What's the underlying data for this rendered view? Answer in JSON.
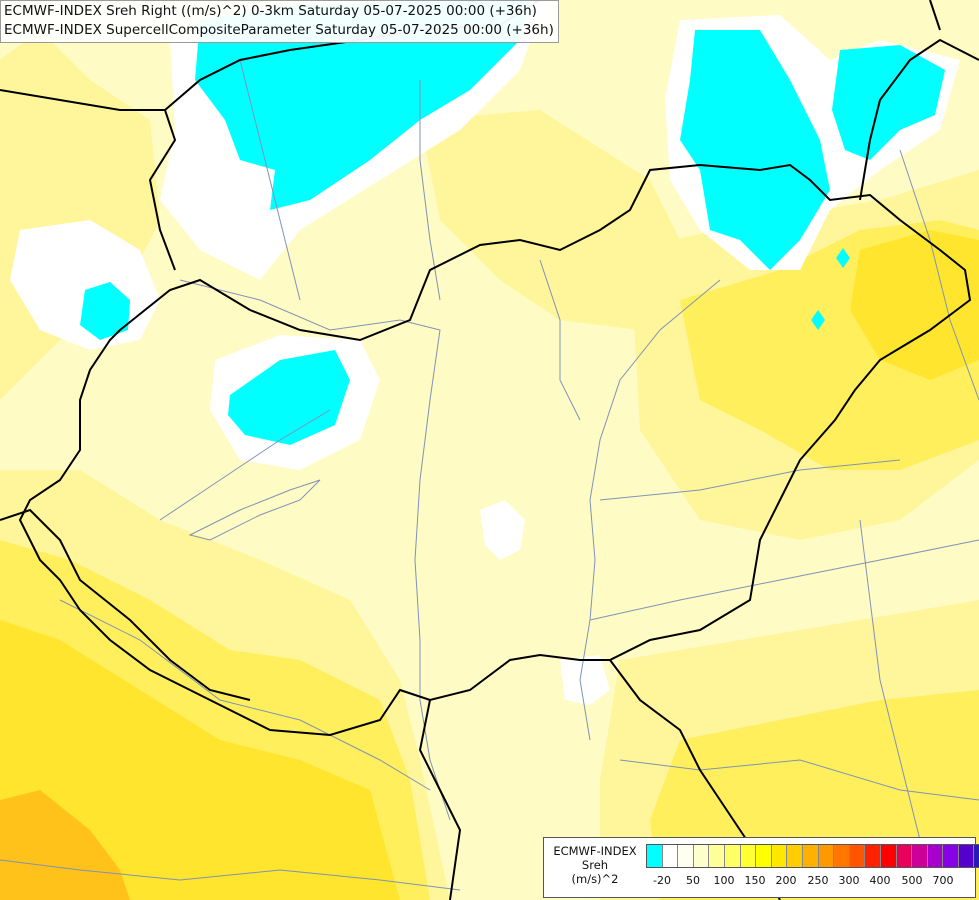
{
  "header": {
    "line1": "ECMWF-INDEX Sreh Right ((m/s)^2) 0-3km Saturday 05-07-2025 00:00 (+36h)",
    "line2": "ECMWF-INDEX SupercellCompositeParameter Saturday 05-07-2025 00:00 (+36h)"
  },
  "legend": {
    "title1": "ECMWF-INDEX",
    "title2": "Sreh",
    "unit": "(m/s)^2",
    "colors": [
      "#00ffff",
      "#ffffff",
      "#fffff0",
      "#ffffcc",
      "#ffff99",
      "#ffff66",
      "#ffff33",
      "#ffff00",
      "#ffe800",
      "#ffcc00",
      "#ffb000",
      "#ff9900",
      "#ff7700",
      "#ff5500",
      "#ff2200",
      "#ff0000",
      "#e8005a",
      "#cc0099",
      "#a800cc",
      "#8800e6",
      "#5500cc",
      "#2a1bb0",
      "#000088"
    ],
    "labels": [
      "-20",
      "50",
      "100",
      "150",
      "200",
      "250",
      "300",
      "400",
      "500",
      "700"
    ]
  },
  "map": {
    "colors": {
      "background": "#fffbc4",
      "light_yellow": "#fff59a",
      "yellow": "#ffef5c",
      "deep_yellow": "#ffe52e",
      "orange": "#ffc21a",
      "white": "#ffffff",
      "cyan": "#00ffff",
      "border": "#000000",
      "river": "#7f93b8"
    }
  }
}
